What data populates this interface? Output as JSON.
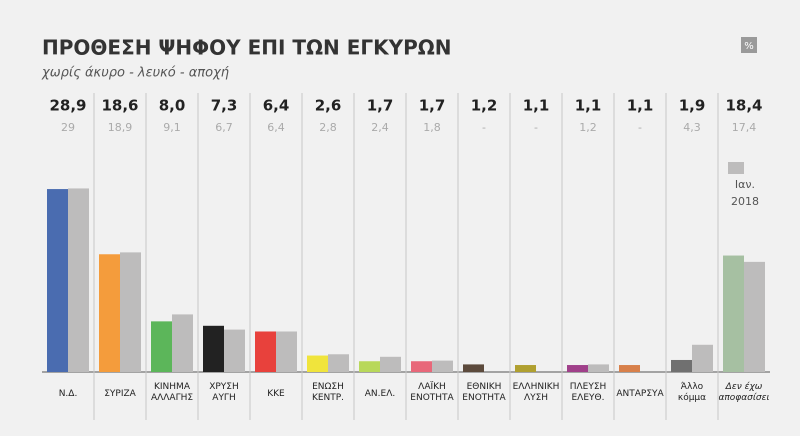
{
  "chart_data": {
    "type": "bar",
    "title": "ΠΡΟΘΕΣΗ ΨΗΦΟΥ ΕΠΙ ΤΩΝ ΕΓΚΥΡΩΝ",
    "subtitle": "χωρίς άκυρο - λευκό - αποχή",
    "unit_badge": "%",
    "categories": [
      [
        "Ν.Δ."
      ],
      [
        "ΣΥΡΙΖΑ"
      ],
      [
        "ΚΙΝΗΜΑ",
        "ΑΛΛΑΓΗΣ"
      ],
      [
        "ΧΡΥΣΗ",
        "ΑΥΓΗ"
      ],
      [
        "ΚΚΕ"
      ],
      [
        "ΕΝΩΣΗ",
        "ΚΕΝΤΡ."
      ],
      [
        "ΑΝ.ΕΛ."
      ],
      [
        "ΛΑΪΚΗ",
        "ΕΝΟΤΗΤΑ"
      ],
      [
        "ΕΘΝΙΚΗ",
        "ΕΝΟΤΗΤΑ"
      ],
      [
        "ΕΛΛΗΝΙΚΗ",
        "ΛΥΣΗ"
      ],
      [
        "ΠΛΕΥΣΗ",
        "ΕΛΕΥΘ."
      ],
      [
        "ΑΝΤΑΡΣΥΑ"
      ],
      [
        "Άλλο",
        "κόμμα"
      ],
      [
        "Δεν έχω",
        "αποφασίσει"
      ]
    ],
    "series": [
      {
        "values": [
          28.9,
          18.6,
          8.0,
          7.3,
          6.4,
          2.6,
          1.7,
          1.7,
          1.2,
          1.1,
          1.1,
          1.1,
          1.9,
          18.4
        ],
        "value_labels": [
          "28,9",
          "18,6",
          "8,0",
          "7,3",
          "6,4",
          "2,6",
          "1,7",
          "1,7",
          "1,2",
          "1,1",
          "1,1",
          "1,1",
          "1,9",
          "18,4"
        ],
        "colors": [
          "#4a6cb0",
          "#f49c3c",
          "#5cb65a",
          "#222222",
          "#e8413c",
          "#f0e43c",
          "#b8d85a",
          "#e8687a",
          "#5c4a3c",
          "#b0a030",
          "#a0408a",
          "#d8804a",
          "#707070",
          "#a6c0a2"
        ]
      },
      {
        "name": "Ιαν. 2018",
        "color": "#bdbcbc",
        "values": [
          29,
          18.9,
          9.1,
          6.7,
          6.4,
          2.8,
          2.4,
          1.8,
          null,
          null,
          1.2,
          null,
          4.3,
          17.4
        ],
        "value_labels": [
          "29",
          "18,9",
          "9,1",
          "6,7",
          "6,4",
          "2,8",
          "2,4",
          "1,8",
          "-",
          "-",
          "1,2",
          "-",
          "4,3",
          "17,4"
        ]
      }
    ]
  }
}
